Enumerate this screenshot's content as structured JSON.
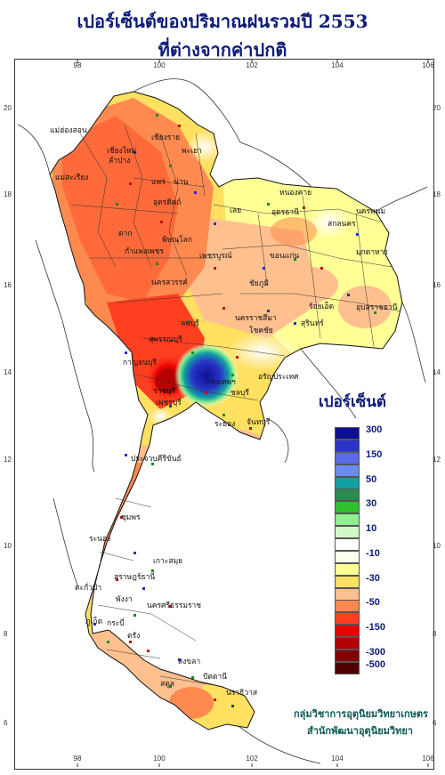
{
  "title": {
    "line1": "เปอร์เซ็นต์ของปริมาณฝนรวมปี 2553",
    "line2": "ที่ต่างจากค่าปกติ"
  },
  "axis": {
    "longitude_ticks": [
      "98",
      "100",
      "102",
      "104",
      "106"
    ],
    "latitude_ticks": [
      "20",
      "18",
      "16",
      "14",
      "12",
      "10",
      "8",
      "6"
    ]
  },
  "legend": {
    "title": "เปอร์เซ็นต์",
    "entries": [
      {
        "color": "#0a1090",
        "label": "300"
      },
      {
        "color": "#2a35c8",
        "label": ""
      },
      {
        "color": "#5a6ae8",
        "label": "150"
      },
      {
        "color": "#6a8cf0",
        "label": ""
      },
      {
        "color": "#12a0a0",
        "label": "50"
      },
      {
        "color": "#2e8a50",
        "label": ""
      },
      {
        "color": "#2ec02e",
        "label": "30"
      },
      {
        "color": "#8ef08e",
        "label": ""
      },
      {
        "color": "#d2f8c8",
        "label": "10"
      },
      {
        "color": "#ffffff",
        "label": ""
      },
      {
        "color": "#fffff0",
        "label": "-10"
      },
      {
        "color": "#ffff96",
        "label": ""
      },
      {
        "color": "#ffe060",
        "label": "-30"
      },
      {
        "color": "#ffc090",
        "label": ""
      },
      {
        "color": "#ff8a50",
        "label": "-50"
      },
      {
        "color": "#ff4020",
        "label": ""
      },
      {
        "color": "#e80000",
        "label": "-150"
      },
      {
        "color": "#b00000",
        "label": ""
      },
      {
        "color": "#800000",
        "label": "-300"
      },
      {
        "color": "#500000",
        "label": "-500"
      }
    ]
  },
  "provinces": [
    {
      "id": "maehongson",
      "name": "แม่ฮ่องสอน"
    },
    {
      "id": "chiangmai",
      "name": "เชียงใหม่"
    },
    {
      "id": "lampang",
      "name": "ลำปาง"
    },
    {
      "id": "chiangrai",
      "name": "เชียงราย"
    },
    {
      "id": "phayao",
      "name": "พะเยา"
    },
    {
      "id": "nan",
      "name": "น่าน"
    },
    {
      "id": "phrae",
      "name": "แพร่"
    },
    {
      "id": "mae_sariang",
      "name": "แม่สะเรียง"
    },
    {
      "id": "uttaradit",
      "name": "อุตรดิตถ์"
    },
    {
      "id": "nongkhai",
      "name": "หนองคาย"
    },
    {
      "id": "nakhonphanom",
      "name": "นครพนม"
    },
    {
      "id": "loei",
      "name": "เลย"
    },
    {
      "id": "udonthani",
      "name": "อุดรธานี"
    },
    {
      "id": "sakon",
      "name": "สกลนคร"
    },
    {
      "id": "tak",
      "name": "ตาก"
    },
    {
      "id": "phitsanulok",
      "name": "พิษณุโลก"
    },
    {
      "id": "mukdahan",
      "name": "มุกดาหาร"
    },
    {
      "id": "kamphaengphet",
      "name": "กำแพงเพชร"
    },
    {
      "id": "phetchabun",
      "name": "เพชรบูรณ์"
    },
    {
      "id": "khonkaen",
      "name": "ขอนแก่น"
    },
    {
      "id": "nakhonsawan",
      "name": "นครสวรรค์"
    },
    {
      "id": "chaiyaphum",
      "name": "ชัยภูมิ"
    },
    {
      "id": "roiet",
      "name": "ร้อยเอ็ด"
    },
    {
      "id": "ubon",
      "name": "อุบลราชธานี"
    },
    {
      "id": "lopburi",
      "name": "ลพบุรี"
    },
    {
      "id": "nakhonratchasima",
      "name": "นครราชสีมา"
    },
    {
      "id": "surin",
      "name": "สุรินทร์"
    },
    {
      "id": "suphanburi",
      "name": "สุพรรณบุรี"
    },
    {
      "id": "chokchai",
      "name": "โชคชัย"
    },
    {
      "id": "kanchanaburi",
      "name": "กาญจนบุรี"
    },
    {
      "id": "bangkok",
      "name": "กรุงเทพฯ"
    },
    {
      "id": "aranyaprathet",
      "name": "อรัญประเทศ"
    },
    {
      "id": "ratchaburi",
      "name": "ราชบุรี"
    },
    {
      "id": "chonburi",
      "name": "ชลบุรี"
    },
    {
      "id": "phetchaburi",
      "name": "เพชรบุรี"
    },
    {
      "id": "rayong",
      "name": "ระยอง"
    },
    {
      "id": "chanthaburi",
      "name": "จันทบุรี"
    },
    {
      "id": "prachuap",
      "name": "ประจวบคีรีขันธ์"
    },
    {
      "id": "chumphon",
      "name": "ชุมพร"
    },
    {
      "id": "ranong",
      "name": "ระนอง"
    },
    {
      "id": "kosamui",
      "name": "เกาะสมุย"
    },
    {
      "id": "suratthani",
      "name": "สุราษฎร์ธานี"
    },
    {
      "id": "kapong",
      "name": "ตะกั่วป่า"
    },
    {
      "id": "phangnga",
      "name": "พังงา"
    },
    {
      "id": "nakhonsi",
      "name": "นครศรีธรรมราช"
    },
    {
      "id": "phuket",
      "name": "ภูเก็ต"
    },
    {
      "id": "krabi",
      "name": "กระบี่"
    },
    {
      "id": "trang",
      "name": "ตรัง"
    },
    {
      "id": "songkhla",
      "name": "สงขลา"
    },
    {
      "id": "satun",
      "name": "สตูล"
    },
    {
      "id": "pattani",
      "name": "ปัตตานี"
    },
    {
      "id": "narathiwat",
      "name": "นราธิวาส"
    }
  ],
  "credit": {
    "line1": "กลุ่มวิชาการอุตุนิยมวิทยาเกษตร",
    "line2": "สำนักพัฒนาอุตุนิยมวิทยา"
  }
}
